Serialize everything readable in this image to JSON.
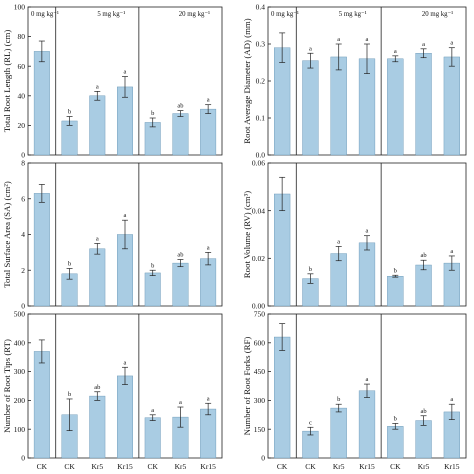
{
  "chart_data": [
    {
      "type": "bar",
      "panel": 1,
      "ylabel": "Total Root Length (RL) (cm)",
      "ylim": [
        0,
        100
      ],
      "yticks": [
        0,
        20,
        40,
        60,
        80,
        100
      ],
      "tick_labels": [
        "0",
        "20",
        "40",
        "60",
        "80",
        "100"
      ],
      "categories": [
        "CK",
        "CK",
        "Kr5",
        "Kr15",
        "CK",
        "Kr5",
        "Kr15"
      ],
      "values": [
        70,
        23,
        40,
        46,
        22,
        28,
        31
      ],
      "errors": [
        7,
        3,
        3,
        7,
        3,
        2,
        3
      ],
      "letters": [
        "",
        "b",
        "a",
        "a",
        "b",
        "ab",
        "a"
      ],
      "groups": [
        "0 mg kg⁻¹",
        "5 mg kg⁻¹",
        "20 mg kg⁻¹"
      ]
    },
    {
      "type": "bar",
      "panel": 2,
      "ylabel": "Root Average Diameter (AD) (mm)",
      "ylim": [
        0,
        0.4
      ],
      "yticks": [
        0,
        0.1,
        0.2,
        0.3,
        0.4
      ],
      "tick_labels": [
        "0.0",
        "0.1",
        "0.2",
        "0.3",
        "0.4"
      ],
      "categories": [
        "CK",
        "CK",
        "Kr5",
        "Kr15",
        "CK",
        "Kr5",
        "Kr15"
      ],
      "values": [
        0.29,
        0.255,
        0.265,
        0.26,
        0.26,
        0.275,
        0.265
      ],
      "errors": [
        0.04,
        0.02,
        0.035,
        0.04,
        0.008,
        0.012,
        0.025
      ],
      "letters": [
        "",
        "a",
        "a",
        "a",
        "a",
        "a",
        "a"
      ],
      "groups": [
        "0 mg kg⁻¹",
        "5 mg kg⁻¹",
        "20 mg kg⁻¹"
      ]
    },
    {
      "type": "bar",
      "panel": 3,
      "ylabel": "Total Surface Area (SA) (cm²)",
      "ylim": [
        0,
        8
      ],
      "yticks": [
        0,
        2,
        4,
        6,
        8
      ],
      "tick_labels": [
        "0",
        "2",
        "4",
        "6",
        "8"
      ],
      "categories": [
        "CK",
        "CK",
        "Kr5",
        "Kr15",
        "CK",
        "Kr5",
        "Kr15"
      ],
      "values": [
        6.3,
        1.8,
        3.2,
        4.0,
        1.85,
        2.4,
        2.65
      ],
      "errors": [
        0.5,
        0.3,
        0.3,
        0.8,
        0.15,
        0.2,
        0.35
      ],
      "letters": [
        "",
        "b",
        "a",
        "a",
        "b",
        "ab",
        "a"
      ],
      "groups": []
    },
    {
      "type": "bar",
      "panel": 4,
      "ylabel": "Root Volume (RV) (cm³)",
      "ylim": [
        0,
        0.06
      ],
      "yticks": [
        0,
        0.02,
        0.04,
        0.06
      ],
      "tick_labels": [
        "0.00",
        "0.02",
        "0.04",
        "0.06"
      ],
      "categories": [
        "CK",
        "CK",
        "Kr5",
        "Kr15",
        "CK",
        "Kr5",
        "Kr15"
      ],
      "values": [
        0.047,
        0.0115,
        0.022,
        0.0265,
        0.0125,
        0.0172,
        0.018
      ],
      "errors": [
        0.007,
        0.002,
        0.003,
        0.003,
        0.0004,
        0.002,
        0.003
      ],
      "letters": [
        "",
        "b",
        "a",
        "a",
        "b",
        "ab",
        "a"
      ],
      "groups": []
    },
    {
      "type": "bar",
      "panel": 5,
      "ylabel": "Number of Root Tips (RT)",
      "ylim": [
        0,
        500
      ],
      "yticks": [
        0,
        100,
        200,
        300,
        400,
        500
      ],
      "tick_labels": [
        "0",
        "100",
        "200",
        "300",
        "400",
        "500"
      ],
      "categories": [
        "CK",
        "CK",
        "Kr5",
        "Kr15",
        "CK",
        "Kr5",
        "Kr15"
      ],
      "x_tick_labels": [
        "CK",
        "CK",
        "Kr5",
        "Kr15",
        "CK",
        "Kr5",
        "Kr15"
      ],
      "values": [
        370,
        150,
        215,
        285,
        140,
        142,
        170
      ],
      "errors": [
        40,
        55,
        15,
        30,
        10,
        35,
        20
      ],
      "letters": [
        "",
        "b",
        "ab",
        "a",
        "a",
        "a",
        "a"
      ],
      "groups": []
    },
    {
      "type": "bar",
      "panel": 6,
      "ylabel": "Number of Root Forks (RF)",
      "ylim": [
        0,
        750
      ],
      "yticks": [
        0,
        150,
        300,
        450,
        600,
        750
      ],
      "tick_labels": [
        "0",
        "150",
        "300",
        "450",
        "600",
        "750"
      ],
      "categories": [
        "CK",
        "CK",
        "Kr5",
        "Kr15",
        "CK",
        "Kr5",
        "Kr15"
      ],
      "x_tick_labels": [
        "CK",
        "CK",
        "Kr5",
        "Kr15",
        "CK",
        "Kr5",
        "Kr15"
      ],
      "values": [
        630,
        140,
        260,
        350,
        165,
        195,
        240
      ],
      "errors": [
        70,
        20,
        20,
        35,
        15,
        25,
        40
      ],
      "letters": [
        "",
        "c",
        "b",
        "a",
        "b",
        "ab",
        "a"
      ],
      "groups": []
    }
  ],
  "colors": {
    "bar_fill": "#a9cce3",
    "bar_stroke": "#5f8fb0",
    "axis": "#222222",
    "text": "#111111"
  }
}
